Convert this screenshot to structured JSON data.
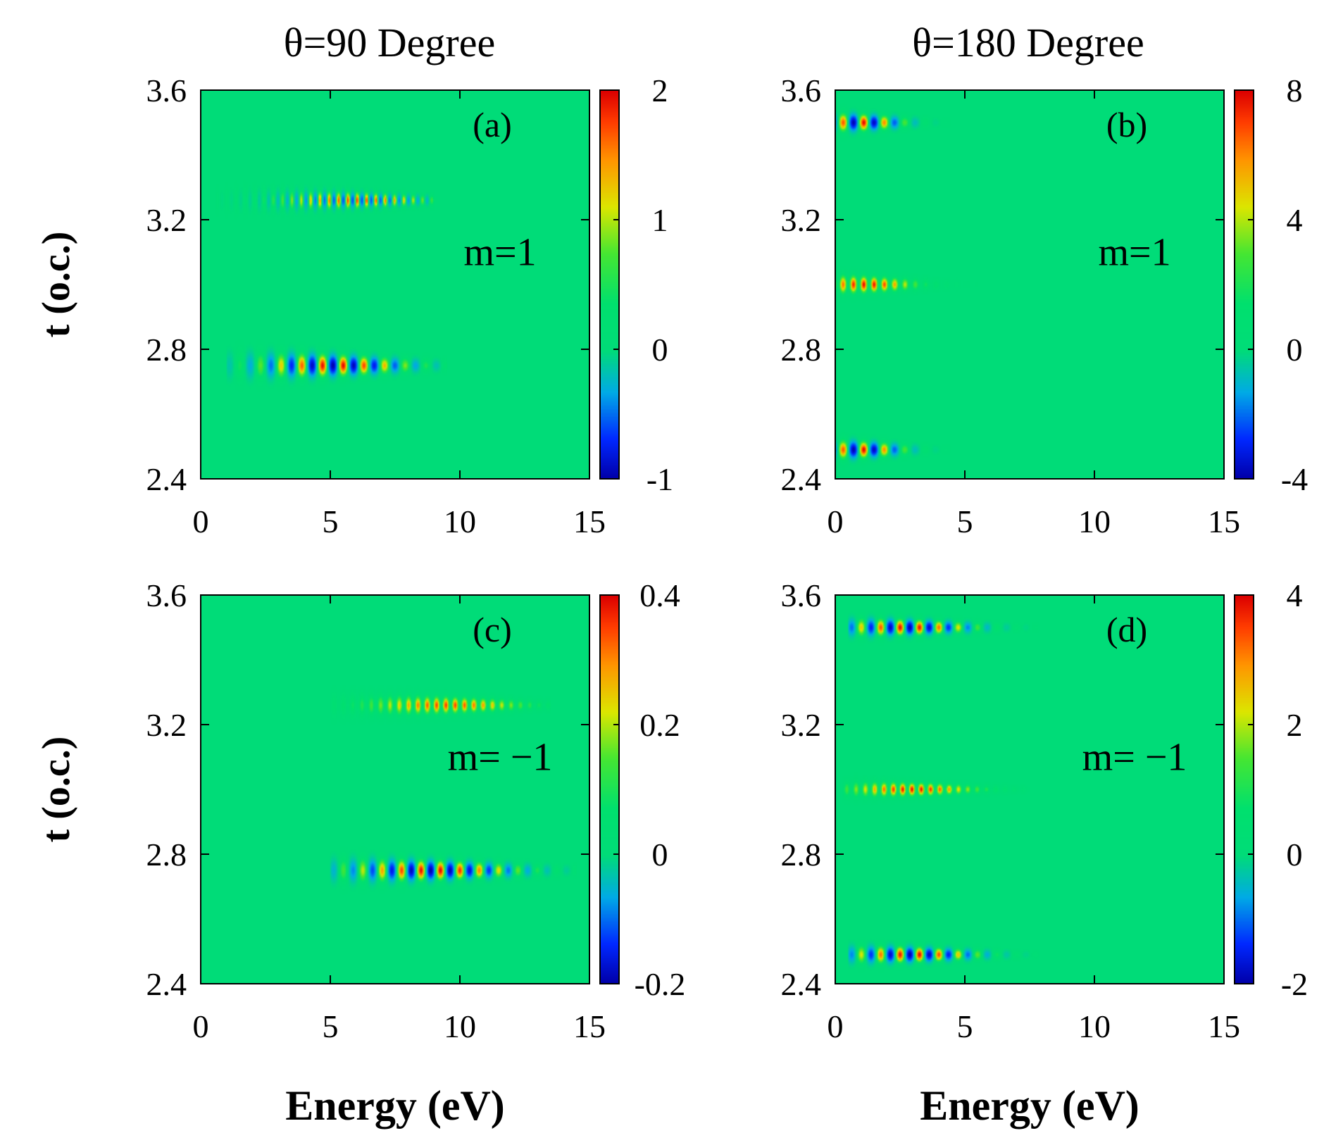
{
  "column_titles": [
    "θ=90 Degree",
    "θ=180 Degree"
  ],
  "chart_data": [
    {
      "type": "heatmap",
      "panel_label": "(a)",
      "annotation": "m=1",
      "xlabel": "",
      "ylabel": "t (o.c.)",
      "xlim": [
        0,
        15
      ],
      "ylim": [
        2.4,
        3.6
      ],
      "xticks": [
        "0",
        "5",
        "10",
        "15"
      ],
      "yticks": [
        "2.4",
        "2.8",
        "3.2",
        "3.6"
      ],
      "colorbar": {
        "min": -1,
        "max": 2,
        "ticks": [
          "-1",
          "0",
          "1",
          "2"
        ]
      },
      "features": [
        {
          "t": 3.26,
          "e_start": 1.0,
          "e_end": 8.5,
          "e_peak": 6.0,
          "amp": 1.8,
          "neg_amp": -0.6,
          "fringe_ev": 0.36,
          "t_width": 0.035
        },
        {
          "t": 2.75,
          "e_start": 1.5,
          "e_end": 9.0,
          "e_peak": 5.2,
          "amp": 2.0,
          "neg_amp": -1.0,
          "fringe_ev": 0.8,
          "t_width": 0.04
        }
      ]
    },
    {
      "type": "heatmap",
      "panel_label": "(b)",
      "annotation": "m=1",
      "xlabel": "",
      "ylabel": "",
      "xlim": [
        0,
        15
      ],
      "ylim": [
        2.4,
        3.6
      ],
      "xticks": [
        "0",
        "5",
        "10",
        "15"
      ],
      "yticks": [
        "2.4",
        "2.8",
        "3.2",
        "3.6"
      ],
      "colorbar": {
        "min": -4,
        "max": 8,
        "ticks": [
          "-4",
          "0",
          "4",
          "8"
        ]
      },
      "features": [
        {
          "t": 3.5,
          "e_start": 0.3,
          "e_end": 4.5,
          "e_peak": 1.0,
          "amp": 8.0,
          "neg_amp": -4.0,
          "fringe_ev": 0.8,
          "t_width": 0.025
        },
        {
          "t": 3.0,
          "e_start": 0.3,
          "e_end": 5.0,
          "e_peak": 1.2,
          "amp": 8.0,
          "neg_amp": 0,
          "fringe_ev": 0.4,
          "t_width": 0.025
        },
        {
          "t": 2.49,
          "e_start": 0.3,
          "e_end": 4.5,
          "e_peak": 1.0,
          "amp": 8.0,
          "neg_amp": -4.0,
          "fringe_ev": 0.8,
          "t_width": 0.025
        }
      ]
    },
    {
      "type": "heatmap",
      "panel_label": "(c)",
      "annotation": "m= −1",
      "xlabel": "Energy (eV)",
      "ylabel": "t (o.c.)",
      "xlim": [
        0,
        15
      ],
      "ylim": [
        2.4,
        3.6
      ],
      "xticks": [
        "0",
        "5",
        "10",
        "15"
      ],
      "yticks": [
        "2.4",
        "2.8",
        "3.2",
        "3.6"
      ],
      "colorbar": {
        "min": -0.2,
        "max": 0.4,
        "ticks": [
          "-0.2",
          "0",
          "0.2",
          "0.4"
        ]
      },
      "features": [
        {
          "t": 3.26,
          "e_start": 5.5,
          "e_end": 13.0,
          "e_peak": 9.5,
          "amp": 0.36,
          "neg_amp": 0,
          "fringe_ev": 0.36,
          "t_width": 0.032
        },
        {
          "t": 2.75,
          "e_start": 5.5,
          "e_end": 14.0,
          "e_peak": 9.0,
          "amp": 0.4,
          "neg_amp": -0.2,
          "fringe_ev": 0.75,
          "t_width": 0.035
        }
      ]
    },
    {
      "type": "heatmap",
      "panel_label": "(d)",
      "annotation": "m= −1",
      "xlabel": "Energy (eV)",
      "ylabel": "",
      "xlim": [
        0,
        15
      ],
      "ylim": [
        2.4,
        3.6
      ],
      "xticks": [
        "0",
        "5",
        "10",
        "15"
      ],
      "yticks": [
        "2.4",
        "2.8",
        "3.2",
        "3.6"
      ],
      "colorbar": {
        "min": -2,
        "max": 4,
        "ticks": [
          "-2",
          "0",
          "2",
          "4"
        ]
      },
      "features": [
        {
          "t": 3.5,
          "e_start": 1.0,
          "e_end": 7.5,
          "e_peak": 2.8,
          "amp": 4.0,
          "neg_amp": -2.0,
          "fringe_ev": 0.75,
          "t_width": 0.025
        },
        {
          "t": 3.0,
          "e_start": 0.8,
          "e_end": 7.0,
          "e_peak": 3.0,
          "amp": 4.0,
          "neg_amp": 0,
          "fringe_ev": 0.36,
          "t_width": 0.022
        },
        {
          "t": 2.49,
          "e_start": 1.0,
          "e_end": 7.5,
          "e_peak": 3.0,
          "amp": 4.0,
          "neg_amp": -2.0,
          "fringe_ev": 0.75,
          "t_width": 0.025
        }
      ]
    }
  ]
}
